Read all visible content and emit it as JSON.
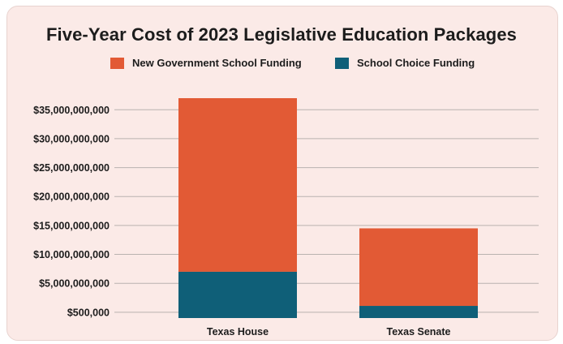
{
  "colors": {
    "background": "#fbeae7",
    "grid": "#b9b2b0",
    "text": "#1c1c1c"
  },
  "chart_data": {
    "type": "bar",
    "stacked": true,
    "title": "Five-Year Cost of 2023 Legislative Education Packages",
    "categories": [
      "Texas House",
      "Texas Senate"
    ],
    "series": [
      {
        "name": "School Choice Funding",
        "color": "#0f5f78",
        "values": [
          7000000000,
          1100000000
        ]
      },
      {
        "name": "New Government School Funding",
        "color": "#e25a35",
        "values": [
          30000000000,
          13400000000
        ]
      }
    ],
    "legend_order": [
      "New Government School Funding",
      "School Choice Funding"
    ],
    "y_ticks": [
      500000,
      5000000000,
      10000000000,
      15000000000,
      20000000000,
      25000000000,
      30000000000,
      35000000000
    ],
    "y_tick_labels": [
      "$500,000",
      "$5,000,000,000",
      "$10,000,000,000",
      "$15,000,000,000",
      "$20,000,000,000",
      "$25,000,000,000",
      "$30,000,000,000",
      "$35,000,000,000"
    ],
    "ylim": [
      -1000000000,
      37000000000
    ],
    "grid": true,
    "legend_position": "top"
  }
}
